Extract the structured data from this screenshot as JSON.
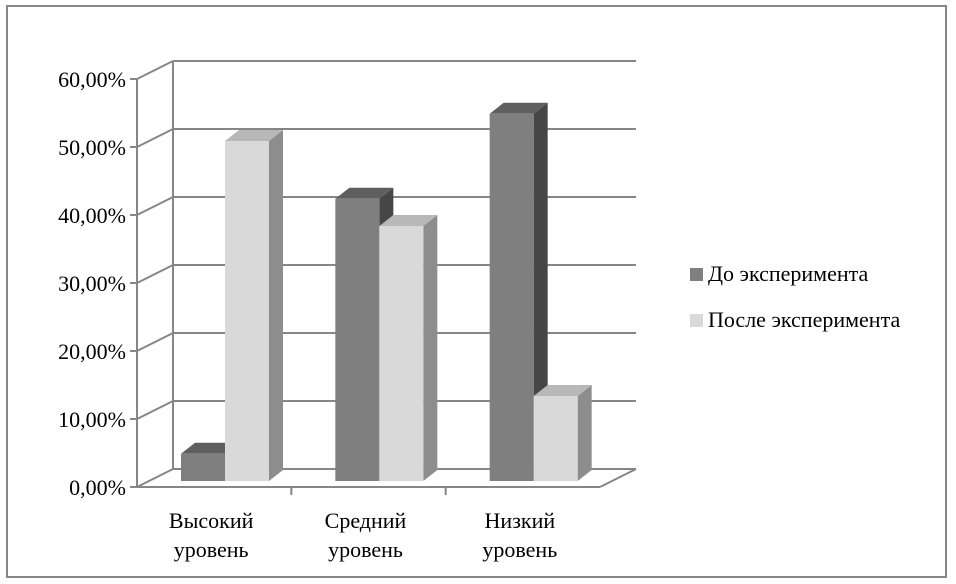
{
  "chart_data": {
    "type": "bar",
    "categories": [
      [
        "Высокий",
        "уровень"
      ],
      [
        "Средний",
        "уровень"
      ],
      [
        "Низкий",
        "уровень"
      ]
    ],
    "series": [
      {
        "name": "До эксперимента",
        "values": [
          4.0,
          41.5,
          54.0
        ],
        "color": "#7f7f7f"
      },
      {
        "name": "После эксперимента",
        "values": [
          50.0,
          37.5,
          12.5
        ],
        "color": "#d9d9d9"
      }
    ],
    "ylim": [
      0,
      60
    ],
    "yticks": [
      "0,00%",
      "10,00%",
      "20,00%",
      "30,00%",
      "40,00%",
      "50,00%",
      "60,00%"
    ],
    "grid": true,
    "legend": "right",
    "three_d": true
  }
}
